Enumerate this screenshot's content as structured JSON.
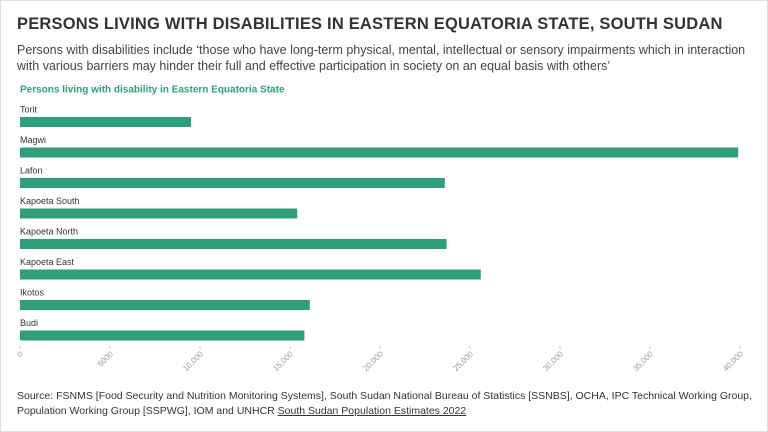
{
  "chart_data": {
    "type": "bar",
    "orientation": "horizontal",
    "title": "PERSONS LIVING WITH DISABILITIES IN EASTERN EQUATORIA STATE, SOUTH SUDAN",
    "subtitle": "Persons with disabilities include ‘those who have long-term physical, mental, intellectual or sensory impairments which in interaction with various barriers may hinder their full and effective participation in society on an equal basis with others’",
    "series_label": "Persons living with disability in Eastern Equatoria State",
    "categories": [
      "Torit",
      "Magwi",
      "Lafon",
      "Kapoeta South",
      "Kapoeta North",
      "Kapoeta East",
      "Ikotos",
      "Budi"
    ],
    "values": [
      9500,
      39900,
      23600,
      15400,
      23700,
      25600,
      16100,
      15800
    ],
    "color": "#2f9e7b",
    "xlim": [
      0,
      40000
    ],
    "xticks": [
      0,
      5000,
      {
        "value": 10000,
        "label": "10,000"
      },
      {
        "value": 15000,
        "label": "15,000"
      },
      {
        "value": 20000,
        "label": "20,000"
      },
      {
        "value": 25000,
        "label": "25,000"
      },
      {
        "value": 30000,
        "label": "30,000"
      },
      {
        "value": 35000,
        "label": "35,000"
      },
      {
        "value": 40000,
        "label": "40,000"
      }
    ],
    "source": "Source: FSNMS [Food Security and Nutrition Monitoring Systems], South Sudan National Bureau of Statistics [SSNBS], OCHA, IPC Technical Working Group, Population Working Group [SSPWG], IOM and UNHCR",
    "source_link": "South Sudan Population Estimates 2022"
  }
}
